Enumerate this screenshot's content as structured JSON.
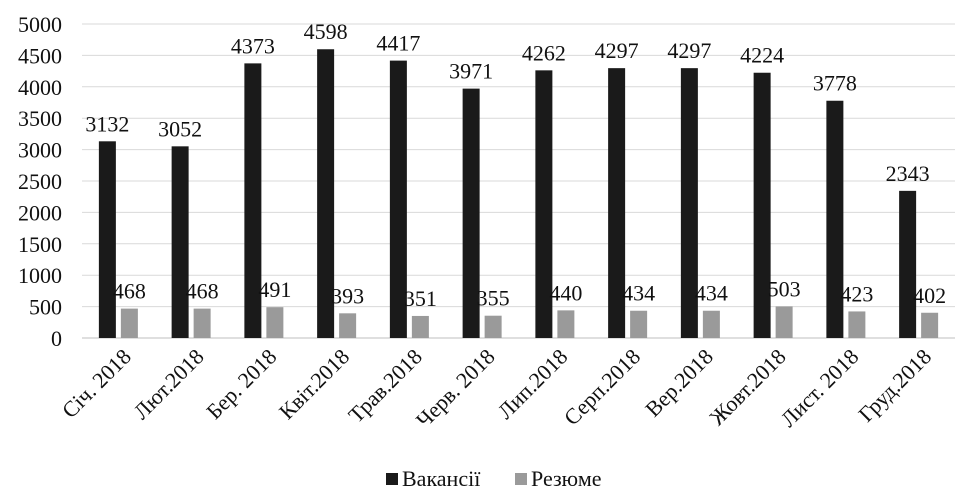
{
  "chart_data": {
    "type": "bar",
    "categories": [
      "Січ. 2018",
      "Лют.2018",
      "Бер. 2018",
      "Квіт.2018",
      "Трав.2018",
      "Черв. 2018",
      "Лип.2018",
      "Серп.2018",
      "Вер.2018",
      "Жовт.2018",
      "Лист. 2018",
      "Груд.2018"
    ],
    "series": [
      {
        "name": "Вакансії",
        "color": "#1a1a1a",
        "values": [
          3132,
          3052,
          4373,
          4598,
          4417,
          3971,
          4262,
          4297,
          4297,
          4224,
          3778,
          2343
        ]
      },
      {
        "name": "Резюме",
        "color": "#9a9a9a",
        "values": [
          468,
          468,
          491,
          393,
          351,
          355,
          440,
          434,
          434,
          503,
          423,
          402
        ]
      }
    ],
    "ylim": [
      0,
      5000
    ],
    "yticks": [
      0,
      500,
      1000,
      1500,
      2000,
      2500,
      3000,
      3500,
      4000,
      4500,
      5000
    ],
    "grid": true,
    "legend": "bottom-center",
    "title": "",
    "xlabel": "",
    "ylabel": ""
  }
}
